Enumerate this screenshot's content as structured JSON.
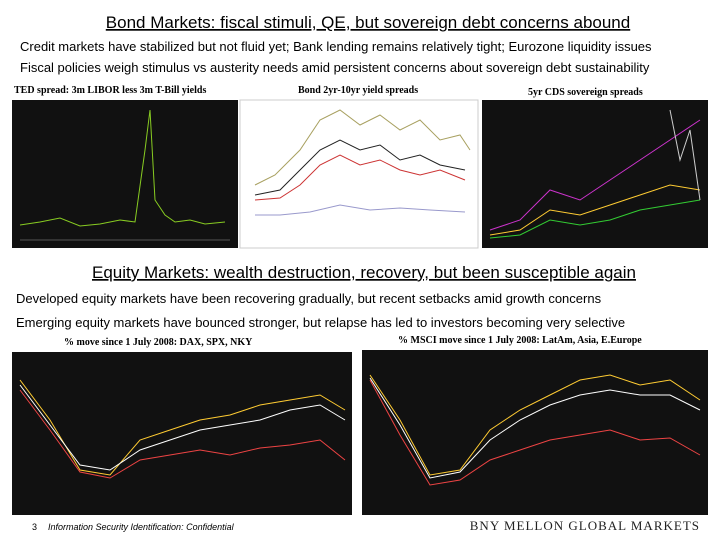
{
  "sections": [
    {
      "title": "Bond Markets: fiscal stimuli, QE, but sovereign debt concerns abound",
      "points": [
        "Credit markets have stabilized but not fluid yet; Bank lending remains relatively tight; Eurozone liquidity issues",
        "Fiscal policies weigh stimulus vs austerity needs amid persistent concerns about sovereign debt sustainability"
      ],
      "charts": [
        {
          "caption": "TED spread: 3m LIBOR less 3m T-Bill yields"
        },
        {
          "caption": "Bond 2yr-10yr yield spreads"
        },
        {
          "caption": "5yr CDS sovereign spreads"
        }
      ]
    },
    {
      "title": "Equity Markets: wealth destruction, recovery, but been susceptible again",
      "points": [
        "Developed equity markets have been recovering gradually, but recent setbacks amid growth concerns",
        "Emerging equity markets have bounced stronger, but relapse has led to investors becoming very selective"
      ],
      "charts": [
        {
          "caption": "% move since 1 July 2008: DAX, SPX, NKY"
        },
        {
          "caption": "% MSCI move since 1 July 2008: LatAm, Asia, E.Europe"
        }
      ]
    }
  ],
  "footer": {
    "page": "3",
    "classification": "Information Security Identification: Confidential",
    "brand": "BNY MELLON GLOBAL MARKETS"
  }
}
